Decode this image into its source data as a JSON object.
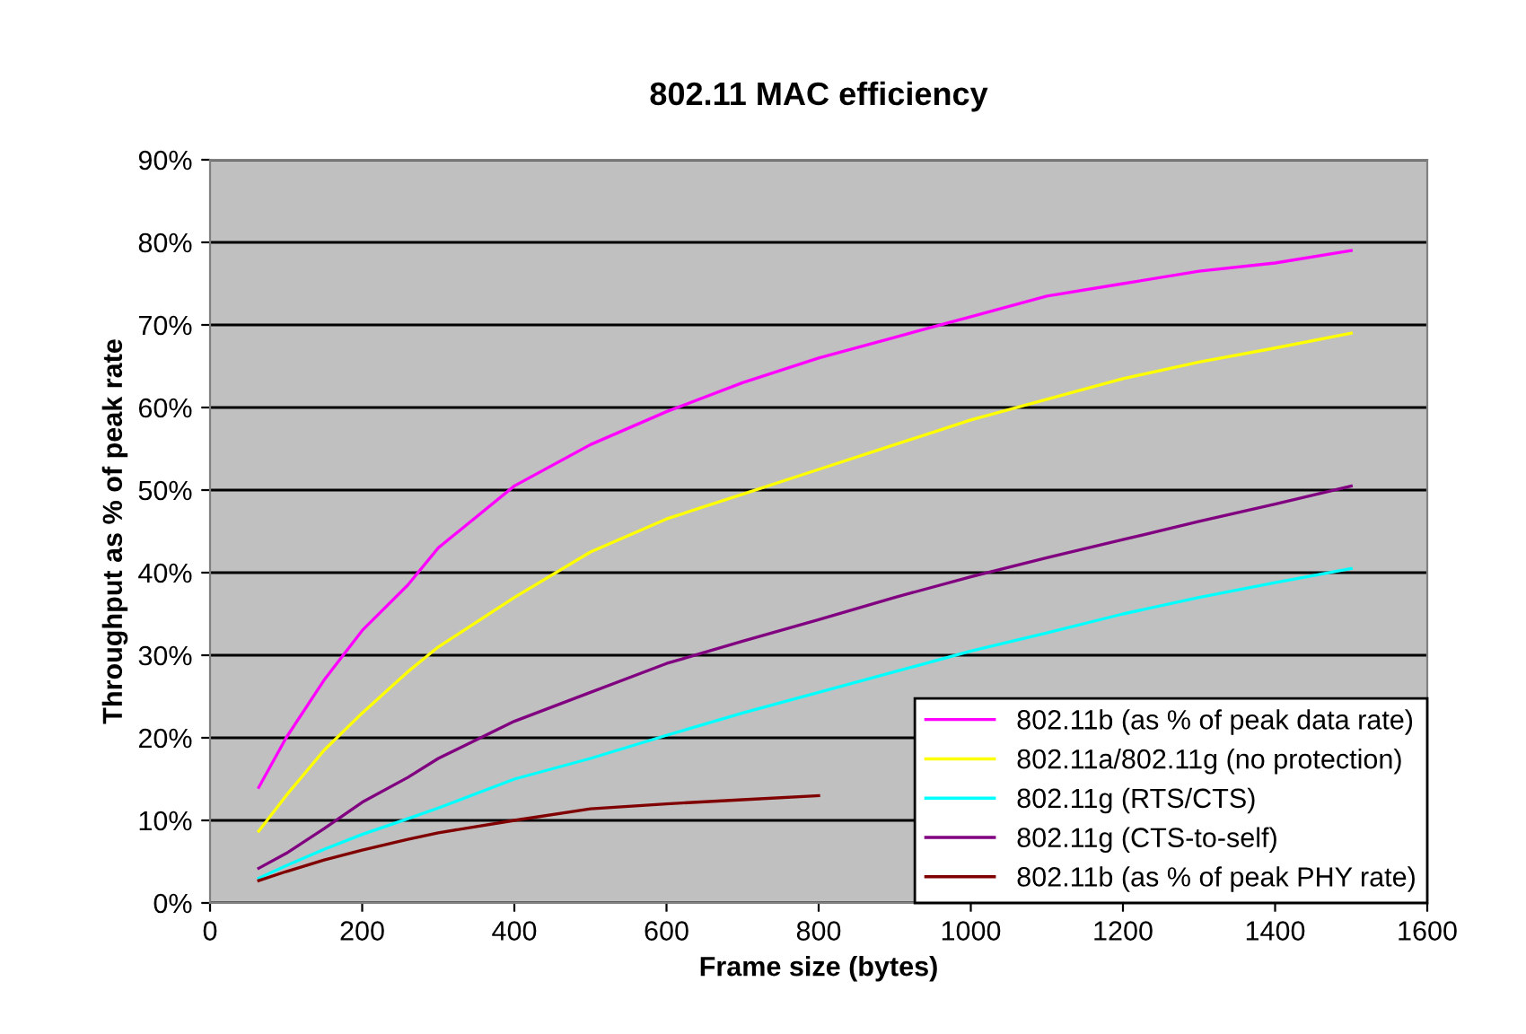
{
  "chart_data": {
    "type": "line",
    "title": "802.11 MAC efficiency",
    "xlabel": "Frame size (bytes)",
    "ylabel": "Throughput as % of peak rate",
    "x": [
      64,
      100,
      150,
      200,
      260,
      300,
      400,
      500,
      600,
      700,
      800,
      900,
      1000,
      1100,
      1200,
      1300,
      1400,
      1500
    ],
    "series": [
      {
        "name": "802.11b (as % of peak data rate)",
        "color": "#ff00ff",
        "values": [
          14,
          20,
          27,
          33,
          38.5,
          43,
          50.5,
          55.5,
          59.5,
          63,
          66,
          68.5,
          71,
          73.5,
          75,
          76.5,
          77.5,
          79
        ]
      },
      {
        "name": "802.11a/802.11g (no protection)",
        "color": "#ffff00",
        "values": [
          8.7,
          13,
          18.5,
          23,
          28,
          31,
          37,
          42.5,
          46.5,
          49.5,
          52.5,
          55.5,
          58.5,
          61,
          63.5,
          65.5,
          67.2,
          69
        ]
      },
      {
        "name": "802.11g (RTS/CTS)",
        "color": "#00ffff",
        "values": [
          3,
          4.5,
          6.5,
          8.3,
          10.2,
          11.5,
          15,
          17.5,
          20.3,
          23,
          25.5,
          28,
          30.5,
          32.7,
          35,
          37,
          38.8,
          40.5
        ]
      },
      {
        "name": "802.11g (CTS-to-self)",
        "color": "#800080",
        "values": [
          4.2,
          6,
          9,
          12.2,
          15.2,
          17.5,
          22,
          25.5,
          29,
          31.7,
          34.3,
          37,
          39.5,
          41.8,
          44,
          46.2,
          48.3,
          50.5
        ]
      },
      {
        "name": "802.11b (as % of peak PHY rate)",
        "color": "#800000",
        "values": [
          2.7,
          3.8,
          5.2,
          6.4,
          7.7,
          8.5,
          10,
          11.4,
          12,
          12.5,
          13,
          null,
          null,
          null,
          null,
          null,
          null,
          null
        ]
      }
    ],
    "xlim": [
      0,
      1600
    ],
    "xticks": [
      0,
      200,
      400,
      600,
      800,
      1000,
      1200,
      1400,
      1600
    ],
    "ylim": [
      0,
      90
    ],
    "yticks": [
      {
        "value": 0,
        "label": "0%"
      },
      {
        "value": 10,
        "label": "10%"
      },
      {
        "value": 20,
        "label": "20%"
      },
      {
        "value": 30,
        "label": "30%"
      },
      {
        "value": 40,
        "label": "40%"
      },
      {
        "value": 50,
        "label": "50%"
      },
      {
        "value": 60,
        "label": "60%"
      },
      {
        "value": 70,
        "label": "70%"
      },
      {
        "value": 80,
        "label": "80%"
      },
      {
        "value": 90,
        "label": "90%"
      }
    ],
    "grid": "y",
    "legend": "bottom right",
    "marker": "none",
    "line_style": "solid"
  }
}
